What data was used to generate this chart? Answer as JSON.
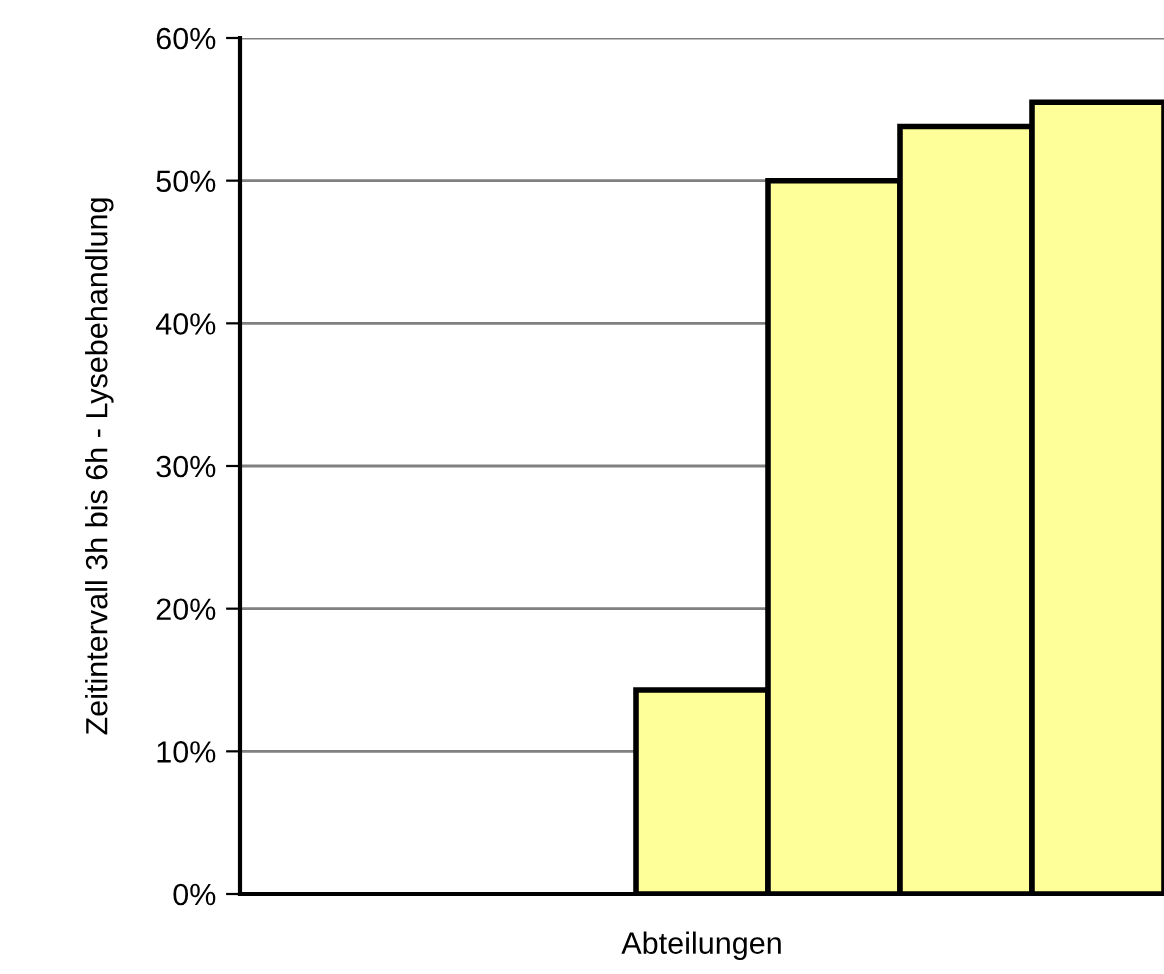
{
  "chart_data": {
    "type": "bar",
    "xlabel": "Abteilungen",
    "ylabel": "Zeitintervall 3h bis 6h - Lysebehandlung",
    "categories": [
      null,
      null,
      null,
      null,
      null,
      null,
      null
    ],
    "values": [
      null,
      null,
      null,
      14.3,
      50,
      53.8,
      55.5
    ],
    "color": "#ffff99",
    "ylim": [
      0,
      60
    ],
    "yticks": [
      {
        "value": 0,
        "label": "0%"
      },
      {
        "value": 10,
        "label": "10%"
      },
      {
        "value": 20,
        "label": "20%"
      },
      {
        "value": 30,
        "label": "30%"
      },
      {
        "value": 40,
        "label": "40%"
      },
      {
        "value": 50,
        "label": "50%"
      },
      {
        "value": 60,
        "label": "60%"
      }
    ],
    "grid": "y"
  }
}
